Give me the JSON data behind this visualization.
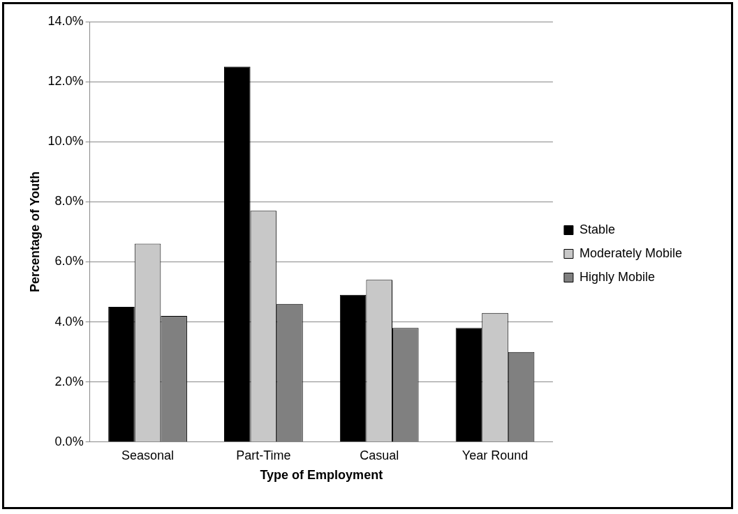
{
  "chart_data": {
    "type": "bar",
    "xlabel": "Type of Employment",
    "ylabel": "Percentage of Youth",
    "categories": [
      "Seasonal",
      "Part-Time",
      "Casual",
      "Year Round"
    ],
    "series": [
      {
        "name": "Stable",
        "color": "#000000",
        "values": [
          4.5,
          12.5,
          4.9,
          3.8
        ]
      },
      {
        "name": "Moderately Mobile",
        "color": "#c8c8c8",
        "values": [
          6.6,
          7.7,
          5.4,
          4.3
        ]
      },
      {
        "name": "Highly Mobile",
        "color": "#808080",
        "values": [
          4.2,
          4.6,
          3.8,
          3.0
        ]
      }
    ],
    "ylim": [
      0,
      14
    ],
    "yticks": [
      {
        "value": 0,
        "label": "0.0%"
      },
      {
        "value": 2,
        "label": "2.0%"
      },
      {
        "value": 4,
        "label": "4.0%"
      },
      {
        "value": 6,
        "label": "6.0%"
      },
      {
        "value": 8,
        "label": "8.0%"
      },
      {
        "value": 10,
        "label": "10.0%"
      },
      {
        "value": 12,
        "label": "12.0%"
      },
      {
        "value": 14,
        "label": "14.0%"
      }
    ],
    "grid": "y",
    "legend": "right"
  }
}
